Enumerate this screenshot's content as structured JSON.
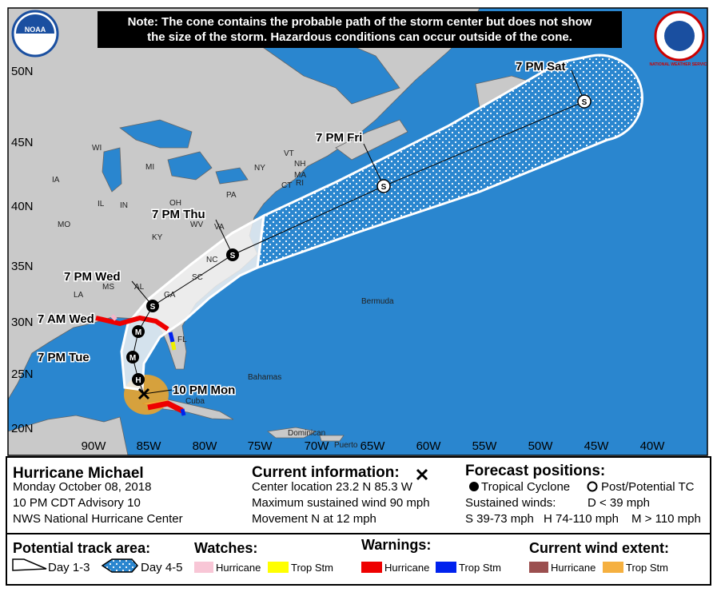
{
  "note_lines": [
    "Note: The cone contains the probable path of the storm center but does not show",
    "the size of the storm. Hazardous conditions can occur outside of the cone."
  ],
  "logos": {
    "noaa": "NOAA",
    "nws": "NATIONAL WEATHER SERVICE"
  },
  "lat_labels": [
    "50N",
    "45N",
    "40N",
    "35N",
    "30N",
    "25N",
    "20N"
  ],
  "lon_labels": [
    "90W",
    "85W",
    "80W",
    "75W",
    "70W",
    "65W",
    "60W",
    "55W",
    "50W",
    "45W",
    "40W"
  ],
  "region_labels": [
    "WI",
    "MI",
    "NY",
    "VT",
    "NH",
    "MA",
    "CT",
    "RI",
    "IA",
    "IL",
    "IN",
    "OH",
    "PA",
    "MO",
    "KY",
    "WV",
    "VA",
    "NC",
    "SC",
    "GA",
    "AL",
    "MS",
    "LA",
    "FL",
    "Bermuda",
    "Bahamas",
    "Cuba",
    "Dominican",
    "Puerto"
  ],
  "forecast_points": [
    {
      "time": "7 PM Sat",
      "symbol": "S"
    },
    {
      "time": "7 PM Fri",
      "symbol": "S"
    },
    {
      "time": "7 PM Thu",
      "symbol": "S"
    },
    {
      "time": "7 PM Wed",
      "symbol": "S"
    },
    {
      "time": "7 AM Wed",
      "symbol": "M"
    },
    {
      "time": "7 PM Tue",
      "symbol": "M"
    },
    {
      "symbol": "H"
    },
    {
      "time": "10 PM Mon"
    }
  ],
  "storm": {
    "name": "Hurricane Michael",
    "date": "Monday October 08, 2018",
    "advisory": "10 PM CDT Advisory 10",
    "center": "NWS National Hurricane Center"
  },
  "current": {
    "heading": "Current information:",
    "lines": [
      "Center location 23.2 N 85.3 W",
      "Maximum sustained wind 90 mph",
      "Movement N at 12 mph"
    ]
  },
  "forecast": {
    "heading": "Forecast positions:",
    "tropical": "Tropical Cyclone",
    "post": "Post/Potential TC",
    "winds": "Sustained winds:",
    "d": "D < 39 mph",
    "s": "S 39-73 mph",
    "h": "H 74-110 mph",
    "m": "M > 110 mph"
  },
  "legend": {
    "track": {
      "heading": "Potential track area:",
      "day13": "Day 1-3",
      "day45": "Day 4-5"
    },
    "watches": {
      "heading": "Watches:",
      "hurricane": "Hurricane",
      "trop": "Trop Stm"
    },
    "warnings": {
      "heading": "Warnings:",
      "hurricane": "Hurricane",
      "trop": "Trop Stm"
    },
    "wind": {
      "heading": "Current wind extent:",
      "hurricane": "Hurricane",
      "trop": "Trop Stm"
    }
  }
}
